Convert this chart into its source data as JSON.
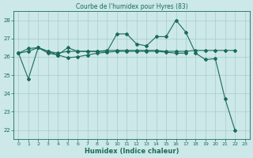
{
  "title": "Courbe de l'humidex pour Hyres (83)",
  "xlabel": "Humidex (Indice chaleur)",
  "bg_color": "#cce8e8",
  "grid_color": "#aacccc",
  "line_color": "#1a6b5a",
  "xlim": [
    -0.5,
    23.5
  ],
  "ylim": [
    21.5,
    28.5
  ],
  "yticks": [
    22,
    23,
    24,
    25,
    26,
    27,
    28
  ],
  "xticks": [
    0,
    1,
    2,
    3,
    4,
    5,
    6,
    7,
    8,
    9,
    10,
    11,
    12,
    13,
    14,
    15,
    16,
    17,
    18,
    19,
    20,
    21,
    22,
    23
  ],
  "line1_x": [
    0,
    1,
    2,
    3,
    4,
    5,
    6,
    7,
    8,
    9,
    10,
    11,
    12,
    13,
    14,
    15,
    16,
    17,
    18,
    19,
    20,
    21,
    22
  ],
  "line1_y": [
    26.2,
    24.8,
    26.5,
    26.2,
    26.1,
    26.5,
    26.3,
    26.3,
    26.3,
    26.3,
    27.25,
    27.25,
    26.7,
    26.6,
    27.1,
    27.1,
    28.0,
    27.35,
    26.2,
    25.85,
    25.9,
    23.7,
    22.0
  ],
  "line2_x": [
    0,
    1,
    2,
    3,
    4,
    5,
    6,
    7,
    8,
    9,
    10,
    11,
    12,
    13,
    14,
    15,
    16,
    17,
    18,
    19,
    20,
    21,
    22
  ],
  "line2_y": [
    26.2,
    26.3,
    26.5,
    26.3,
    26.2,
    26.3,
    26.3,
    26.3,
    26.3,
    26.35,
    26.35,
    26.35,
    26.35,
    26.35,
    26.35,
    26.3,
    26.3,
    26.3,
    26.35,
    26.35,
    26.35,
    26.35,
    26.35
  ],
  "line3_x": [
    0,
    1,
    2,
    3,
    4,
    5,
    6,
    7,
    8,
    9,
    10,
    11,
    12,
    13,
    14,
    15,
    16,
    17
  ],
  "line3_y": [
    26.2,
    26.45,
    26.5,
    26.3,
    26.1,
    25.95,
    26.0,
    26.1,
    26.2,
    26.25,
    26.3,
    26.3,
    26.3,
    26.3,
    26.3,
    26.25,
    26.2,
    26.2
  ]
}
